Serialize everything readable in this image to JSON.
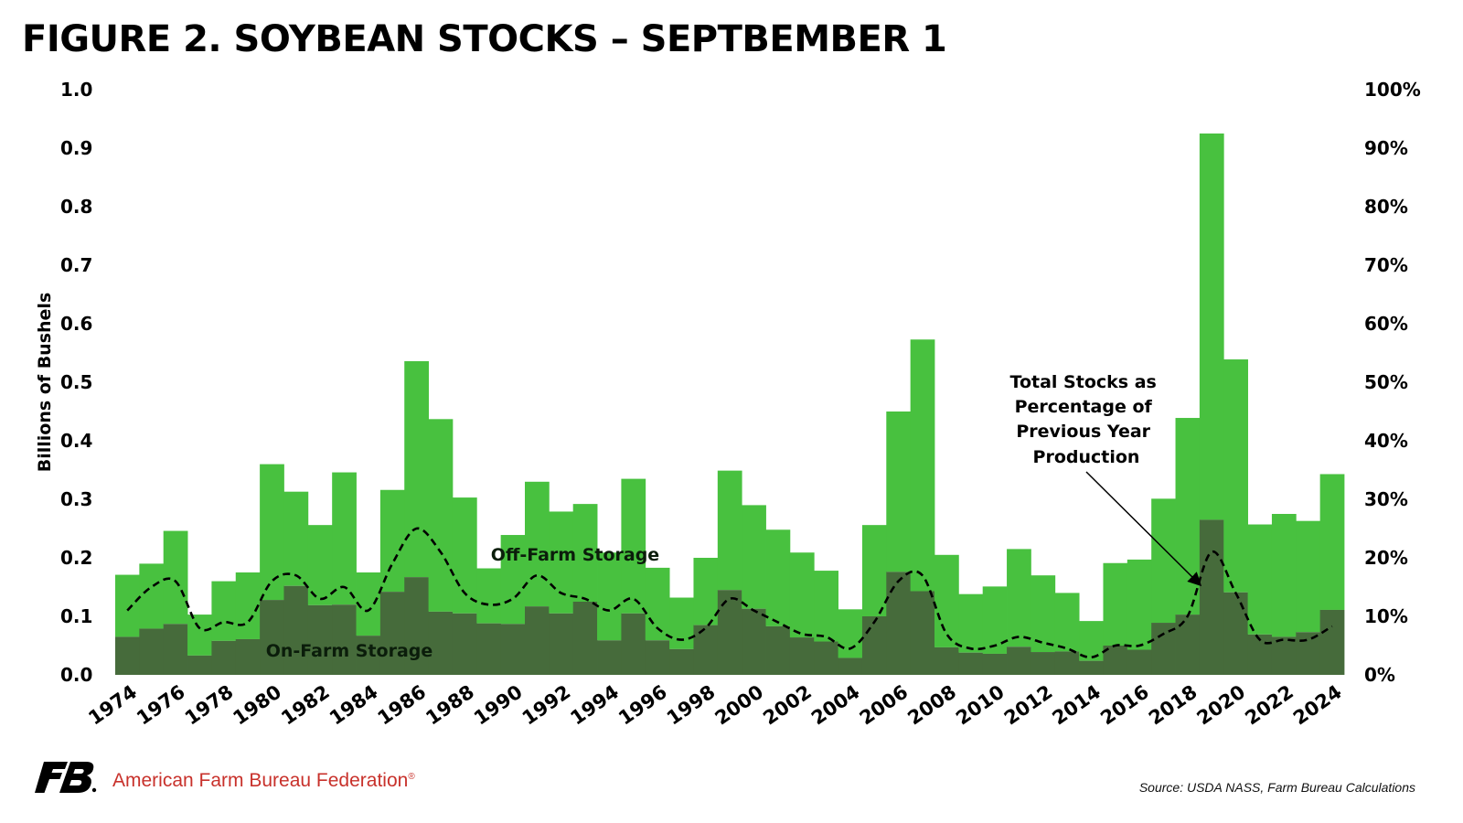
{
  "title": "FIGURE 2. SOYBEAN STOCKS – SEPTBEMBER 1",
  "footer": {
    "organization": "American Farm Bureau Federation",
    "registered_mark": "®",
    "source": "Source: USDA NASS, Farm Bureau Calculations"
  },
  "colors": {
    "off_farm": "#48c13f",
    "on_farm": "#466b3b",
    "line": "#000000",
    "logo": "#000000",
    "org_text": "#c8312b"
  },
  "icons": {
    "logo": "farm-bureau-fb-logo"
  },
  "chart_data": {
    "type": "bar",
    "stacked": true,
    "title": "FIGURE 2. SOYBEAN STOCKS – SEPTBEMBER 1",
    "ylabel": "Billions of Bushels",
    "ylim": [
      0,
      1.0
    ],
    "y_ticks": [
      "0.0",
      "0.1",
      "0.2",
      "0.3",
      "0.4",
      "0.5",
      "0.6",
      "0.7",
      "0.8",
      "0.9",
      "1.0"
    ],
    "y2lim": [
      0,
      100
    ],
    "y2_ticks": [
      "0%",
      "10%",
      "20%",
      "30%",
      "40%",
      "50%",
      "60%",
      "70%",
      "80%",
      "90%",
      "100%"
    ],
    "x_tick_labels": [
      "1974",
      "1976",
      "1978",
      "1980",
      "1982",
      "1984",
      "1986",
      "1988",
      "1990",
      "1992",
      "1994",
      "1996",
      "1998",
      "2000",
      "2002",
      "2004",
      "2006",
      "2008",
      "2010",
      "2012",
      "2014",
      "2016",
      "2018",
      "2020",
      "2022",
      "2024"
    ],
    "grid": false,
    "legend": "none",
    "categories": [
      1974,
      1975,
      1976,
      1977,
      1978,
      1979,
      1980,
      1981,
      1982,
      1983,
      1984,
      1985,
      1986,
      1987,
      1988,
      1989,
      1990,
      1991,
      1992,
      1993,
      1994,
      1995,
      1996,
      1997,
      1998,
      1999,
      2000,
      2001,
      2002,
      2003,
      2004,
      2005,
      2006,
      2007,
      2008,
      2009,
      2010,
      2011,
      2012,
      2013,
      2014,
      2015,
      2016,
      2017,
      2018,
      2019,
      2020,
      2021,
      2022,
      2023,
      2024
    ],
    "series": [
      {
        "name": "On-Farm Storage",
        "values": [
          0.065,
          0.079,
          0.087,
          0.033,
          0.058,
          0.061,
          0.128,
          0.152,
          0.119,
          0.12,
          0.067,
          0.142,
          0.167,
          0.108,
          0.105,
          0.088,
          0.087,
          0.117,
          0.105,
          0.125,
          0.059,
          0.105,
          0.059,
          0.044,
          0.085,
          0.145,
          0.113,
          0.083,
          0.064,
          0.057,
          0.029,
          0.1,
          0.176,
          0.143,
          0.047,
          0.038,
          0.036,
          0.048,
          0.039,
          0.04,
          0.024,
          0.05,
          0.043,
          0.089,
          0.103,
          0.265,
          0.141,
          0.069,
          0.065,
          0.073,
          0.111
        ]
      },
      {
        "name": "Off-Farm Storage",
        "values": [
          0.106,
          0.111,
          0.159,
          0.07,
          0.102,
          0.114,
          0.232,
          0.161,
          0.137,
          0.226,
          0.108,
          0.174,
          0.369,
          0.329,
          0.198,
          0.094,
          0.152,
          0.213,
          0.174,
          0.167,
          0.15,
          0.23,
          0.124,
          0.088,
          0.115,
          0.204,
          0.177,
          0.165,
          0.145,
          0.121,
          0.083,
          0.156,
          0.274,
          0.43,
          0.158,
          0.1,
          0.115,
          0.167,
          0.131,
          0.1,
          0.068,
          0.141,
          0.154,
          0.212,
          0.336,
          0.66,
          0.398,
          0.188,
          0.21,
          0.19,
          0.232
        ]
      },
      {
        "name": "Total Stocks as Percentage of Previous Year Production",
        "type": "line",
        "axis": "right",
        "style": "dashed",
        "values": [
          11,
          15,
          16,
          8,
          9,
          9,
          16,
          17,
          13,
          15,
          11,
          19,
          25,
          21,
          14,
          12,
          13,
          17,
          14,
          13,
          11,
          13,
          8,
          6,
          8,
          13,
          11,
          9,
          7,
          6.5,
          4.5,
          9,
          16,
          17,
          7,
          4.5,
          5,
          6.5,
          5.5,
          4.5,
          3,
          5,
          5,
          7,
          10,
          21,
          14,
          6,
          6,
          6,
          8.3
        ]
      }
    ],
    "annotations": {
      "on_farm_label": "On-Farm Storage",
      "off_farm_label": "Off-Farm Storage",
      "line_label_lines": [
        "Total Stocks as",
        "Percentage of",
        "Previous Year",
        "Production"
      ]
    }
  }
}
